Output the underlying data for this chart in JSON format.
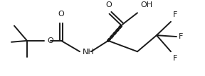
{
  "bg_color": "#ffffff",
  "line_color": "#1a1a1a",
  "lw": 1.4,
  "figsize": [
    2.88,
    1.08
  ],
  "dpi": 100,
  "xlim": [
    0,
    288
  ],
  "ylim": [
    0,
    108
  ]
}
